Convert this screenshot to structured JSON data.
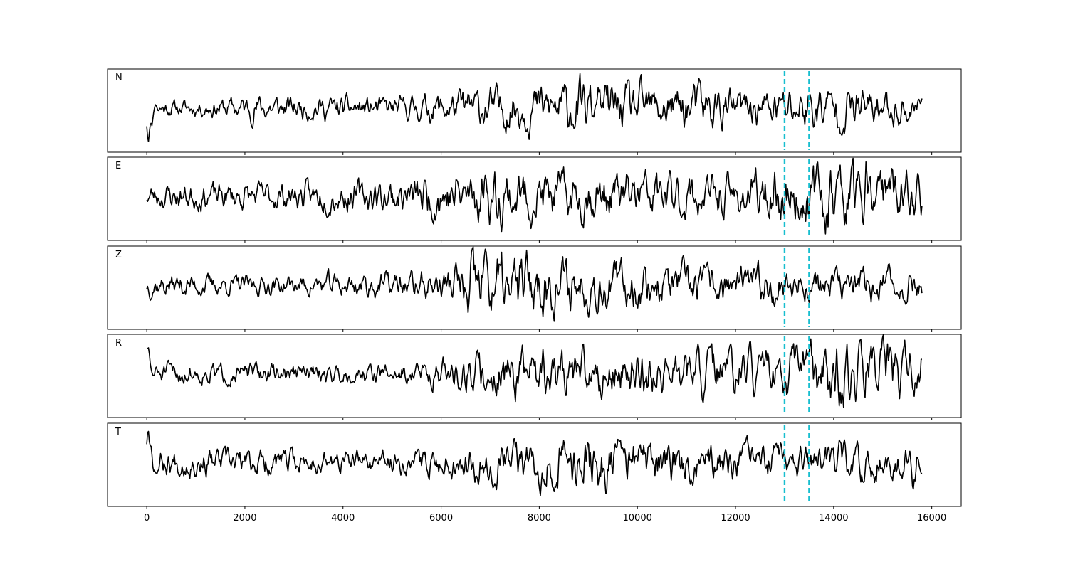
{
  "chart_data": {
    "type": "line",
    "title": "",
    "xlabel": "",
    "ylabel": "",
    "xlim": [
      -800,
      16600
    ],
    "x_ticks": [
      0,
      2000,
      4000,
      6000,
      8000,
      10000,
      12000,
      14000,
      16000
    ],
    "x_tick_labels": [
      "0",
      "2000",
      "4000",
      "6000",
      "8000",
      "10000",
      "12000",
      "14000",
      "16000"
    ],
    "x_start": 0,
    "x_end": 15800,
    "grid": false,
    "markers": {
      "x": [
        13000,
        13500
      ],
      "color": "#17becf",
      "style": "dashed"
    },
    "trace_color": "#000000",
    "channels": [
      {
        "label": "N",
        "ylim": [
          -1,
          1
        ],
        "profile": [
          0.2,
          0.2,
          0.25,
          0.35,
          0.3,
          0.3,
          0.28,
          0.28,
          0.4,
          0.5,
          0.55,
          0.6,
          0.7,
          0.6,
          0.55,
          0.65,
          0.45,
          0.5,
          0.6,
          0.55,
          0.45,
          0.4
        ],
        "features": [
          [
            0,
            0.0
          ],
          [
            30,
            -0.95
          ],
          [
            100,
            -0.5
          ],
          [
            180,
            0.1
          ],
          [
            9200,
            0.55
          ],
          [
            9100,
            -0.25
          ],
          [
            15500,
            -0.35
          ],
          [
            15800,
            0.25
          ]
        ],
        "seed": 11
      },
      {
        "label": "E",
        "ylim": [
          -1,
          1
        ],
        "profile": [
          0.3,
          0.35,
          0.35,
          0.35,
          0.35,
          0.4,
          0.4,
          0.45,
          0.65,
          0.7,
          0.7,
          0.6,
          0.6,
          0.65,
          0.6,
          0.55,
          0.5,
          0.65,
          0.75,
          0.85,
          0.75,
          0.55
        ],
        "features": [
          [
            6900,
            0.55
          ],
          [
            10900,
            -0.55
          ],
          [
            13300,
            -0.65
          ],
          [
            14500,
            0.65
          ],
          [
            14600,
            -0.9
          ],
          [
            14900,
            0.6
          ]
        ],
        "seed": 23
      },
      {
        "label": "Z",
        "ylim": [
          -1,
          1
        ],
        "profile": [
          0.3,
          0.3,
          0.25,
          0.25,
          0.25,
          0.3,
          0.35,
          0.35,
          0.4,
          0.9,
          0.85,
          0.7,
          0.6,
          0.6,
          0.55,
          0.5,
          0.45,
          0.5,
          0.4,
          0.4,
          0.45,
          0.4
        ],
        "features": [
          [
            6550,
            -0.75
          ],
          [
            6900,
            0.95
          ],
          [
            7400,
            -0.4
          ]
        ],
        "seed": 37
      },
      {
        "label": "R",
        "ylim": [
          -1,
          1
        ],
        "profile": [
          0.25,
          0.3,
          0.25,
          0.25,
          0.25,
          0.25,
          0.25,
          0.3,
          0.35,
          0.55,
          0.65,
          0.6,
          0.65,
          0.65,
          0.6,
          0.65,
          0.55,
          0.55,
          0.75,
          0.85,
          0.85,
          0.65
        ],
        "features": [
          [
            0,
            0.6
          ],
          [
            30,
            0.7
          ],
          [
            6900,
            -0.45
          ],
          [
            13250,
            0.8
          ],
          [
            13050,
            -0.65
          ],
          [
            14550,
            0.95
          ],
          [
            14450,
            -0.75
          ],
          [
            14900,
            -0.55
          ]
        ],
        "seed": 51
      },
      {
        "label": "T",
        "ylim": [
          -1,
          1
        ],
        "profile": [
          0.35,
          0.35,
          0.35,
          0.35,
          0.3,
          0.3,
          0.3,
          0.3,
          0.35,
          0.5,
          0.6,
          0.6,
          0.7,
          0.65,
          0.55,
          0.45,
          0.45,
          0.45,
          0.4,
          0.45,
          0.45,
          0.4
        ],
        "features": [
          [
            0,
            -0.05
          ],
          [
            30,
            1.0
          ],
          [
            80,
            0.5
          ],
          [
            200,
            -0.3
          ],
          [
            9200,
            -0.6
          ],
          [
            9700,
            0.5
          ],
          [
            14600,
            -0.55
          ],
          [
            15550,
            0.35
          ],
          [
            15800,
            -0.3
          ]
        ],
        "seed": 67
      }
    ]
  }
}
